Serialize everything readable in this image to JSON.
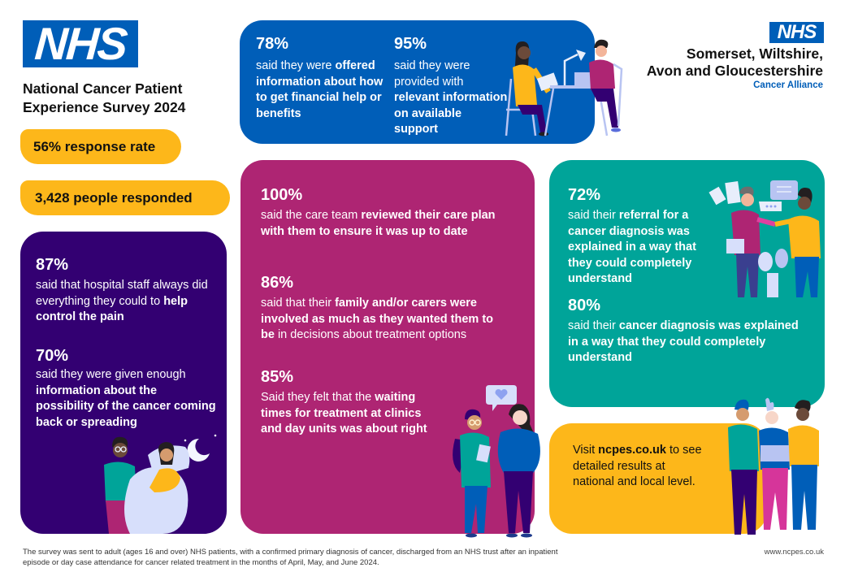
{
  "header": {
    "nhs_logo": "NHS",
    "title_line1": "National Cancer Patient",
    "title_line2": "Experience Survey 2024"
  },
  "stats": {
    "response_rate": "56% response rate",
    "respondents": "3,428 people responded"
  },
  "alliance": {
    "nhs_logo": "NHS",
    "line1": "Somerset, Wiltshire,",
    "line2": "Avon and Gloucestershire",
    "line3": "Cancer Alliance"
  },
  "blue_card": {
    "item1": {
      "pct": "78%",
      "pre": "said they were",
      "bold": "offered information about how to get financial help or benefits"
    },
    "item2": {
      "pct": "95%",
      "pre": "said they were provided with",
      "bold": "relevant information on available support"
    }
  },
  "purple_card": {
    "item1": {
      "pct": "87%",
      "pre": "said that hospital staff always did everything they could to",
      "bold": "help control the pain"
    },
    "item2": {
      "pct": "70%",
      "pre": "said they were given enough",
      "bold": "information about the possibility of the cancer coming back or spreading"
    }
  },
  "magenta_card": {
    "item1": {
      "pct": "100%",
      "pre": "said the care team",
      "bold": "reviewed their care plan with them to ensure it was up to date"
    },
    "item2": {
      "pct": "86%",
      "pre": "said that their",
      "bold": "family and/or carers were involved as much as they wanted them to be",
      "post": "in decisions about treatment options"
    },
    "item3": {
      "pct": "85%",
      "pre": "Said they felt that the",
      "bold": "waiting times for treatment at clinics and day units was about right"
    }
  },
  "teal_card": {
    "item1": {
      "pct": "72%",
      "pre": "said their",
      "bold": "referral for a cancer diagnosis was explained in a way that they could completely understand"
    },
    "item2": {
      "pct": "80%",
      "pre": "said their",
      "bold": "cancer diagnosis was explained in a way that they could completely understand"
    }
  },
  "yellow_card": {
    "pre": "Visit",
    "link": "ncpes.co.uk",
    "post": "to see detailed results at national and local level."
  },
  "footer": {
    "note": "The survey was sent to adult (ages 16 and over) NHS patients, with a confirmed primary diagnosis of cancer, discharged from an NHS trust after an inpatient episode or day case attendance for cancer related treatment in the months of April, May, and June 2024.",
    "url": "www.ncpes.co.uk"
  },
  "colors": {
    "nhs_blue": "#005EB8",
    "purple": "#330072",
    "magenta": "#AE2573",
    "teal": "#00A499",
    "yellow": "#FDB71A"
  }
}
